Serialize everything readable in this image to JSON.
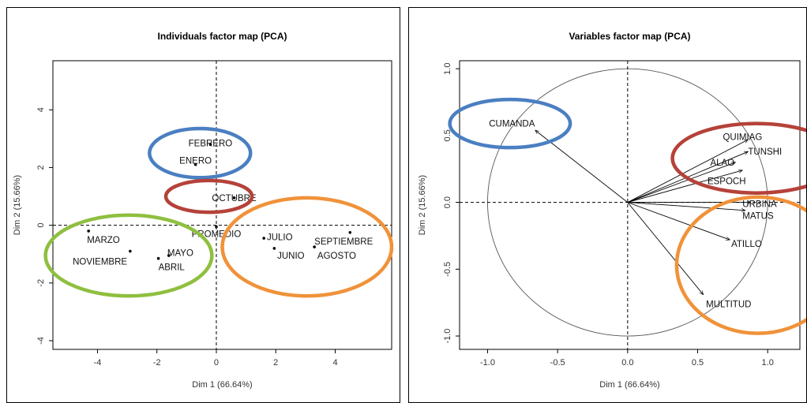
{
  "chart_data": [
    {
      "type": "scatter",
      "title": "Individuals factor map (PCA)",
      "xlabel": "Dim 1 (66.64%)",
      "ylabel": "Dim 2 (15.66%)",
      "xlim": [
        -5.5,
        5.9
      ],
      "ylim": [
        -4.3,
        5.7
      ],
      "xticks": [
        -4,
        -2,
        0,
        2,
        4
      ],
      "yticks": [
        -4,
        -2,
        0,
        2,
        4
      ],
      "xtick_labels": [
        "-4",
        "-2",
        "0",
        "2",
        "4"
      ],
      "ytick_labels": [
        "-4",
        "-2",
        "0",
        "2",
        "4"
      ],
      "points": [
        {
          "label": "FEBRERO",
          "x": -0.2,
          "y": 2.8
        },
        {
          "label": "ENERO",
          "x": -0.7,
          "y": 2.1
        },
        {
          "label": "OCTUBRE",
          "x": 0.6,
          "y": 0.95
        },
        {
          "label": "PROMEDIO",
          "x": 0.0,
          "y": -0.05
        },
        {
          "label": "MARZO",
          "x": -4.3,
          "y": -0.2
        },
        {
          "label": "NOVIEMBRE",
          "x": -2.9,
          "y": -0.9
        },
        {
          "label": "MAYO",
          "x": -1.6,
          "y": -1.05
        },
        {
          "label": "ABRIL",
          "x": -1.95,
          "y": -1.15
        },
        {
          "label": "JULIO",
          "x": 1.6,
          "y": -0.45
        },
        {
          "label": "JUNIO",
          "x": 1.95,
          "y": -0.8
        },
        {
          "label": "SEPTIEMBRE",
          "x": 4.5,
          "y": -0.25
        },
        {
          "label": "AGOSTO",
          "x": 3.3,
          "y": -0.75
        }
      ],
      "highlight_ellipses": [
        {
          "color": "#4a7fc1",
          "cx": -0.55,
          "cy": 2.5,
          "rx": 1.7,
          "ry": 0.85
        },
        {
          "color": "#b5423a",
          "cx": -0.25,
          "cy": 1.0,
          "rx": 1.45,
          "ry": 0.55
        },
        {
          "color": "#8fbf3f",
          "cx": -2.95,
          "cy": -1.05,
          "rx": 2.8,
          "ry": 1.4
        },
        {
          "color": "#f0923a",
          "cx": 3.05,
          "cy": -0.75,
          "rx": 2.85,
          "ry": 1.7
        }
      ]
    },
    {
      "type": "scatter",
      "title": "Variables factor map (PCA)",
      "xlabel": "Dim 1 (66.64%)",
      "ylabel": "Dim 2 (15.66%)",
      "xlim": [
        -1.2,
        1.23
      ],
      "ylim": [
        -1.1,
        1.06
      ],
      "xticks": [
        -1.0,
        -0.5,
        0.0,
        0.5,
        1.0
      ],
      "yticks": [
        -1.0,
        -0.5,
        0.0,
        0.5,
        1.0
      ],
      "xtick_labels": [
        "-1.0",
        "-0.5",
        "0.0",
        "0.5",
        "1.0"
      ],
      "ytick_labels": [
        "-1.0",
        "-0.5",
        "0.0",
        "0.5",
        "1.0"
      ],
      "vectors": [
        {
          "label": "CUMANDA",
          "x": -0.66,
          "y": 0.54
        },
        {
          "label": "QUIMIAG",
          "x": 0.86,
          "y": 0.47
        },
        {
          "label": "TUNSHI",
          "x": 0.86,
          "y": 0.38
        },
        {
          "label": "ALAO",
          "x": 0.77,
          "y": 0.3
        },
        {
          "label": "ESPOCH",
          "x": 0.82,
          "y": 0.24
        },
        {
          "label": "URBINA",
          "x": 0.88,
          "y": 0.0
        },
        {
          "label": "MATUS",
          "x": 0.84,
          "y": -0.06
        },
        {
          "label": "ATILLO",
          "x": 0.73,
          "y": -0.28
        },
        {
          "label": "MULTITUD",
          "x": 0.54,
          "y": -0.69
        }
      ],
      "unit_circle": true,
      "highlight_ellipses": [
        {
          "color": "#4a7fc1",
          "cx": -0.84,
          "cy": 0.59,
          "rx": 0.43,
          "ry": 0.18
        },
        {
          "color": "#b5423a",
          "cx": 0.92,
          "cy": 0.33,
          "rx": 0.6,
          "ry": 0.26
        },
        {
          "color": "#f0923a",
          "cx": 0.93,
          "cy": -0.47,
          "rx": 0.58,
          "ry": 0.51
        }
      ]
    }
  ]
}
